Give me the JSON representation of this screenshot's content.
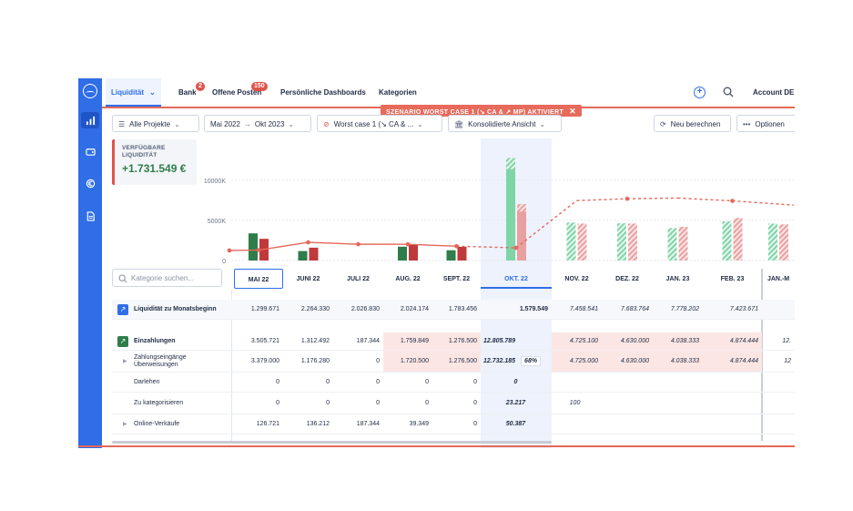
{
  "nav": {
    "tabs": [
      {
        "label": "Liquidität",
        "badge": ""
      },
      {
        "label": "Bank",
        "badge": "2"
      },
      {
        "label": "Offene Posten",
        "badge": "150"
      },
      {
        "label": "Persönliche Dashboards",
        "badge": ""
      },
      {
        "label": "Kategorien",
        "badge": ""
      }
    ],
    "scenario_banner": "SZENARIO WORST CASE 1 (↘ CA & ↗ MP) AKTIVIERT",
    "account": "Account DE"
  },
  "toolbar": {
    "projects": "Alle Projekte",
    "range_from": "Mai 2022",
    "range_to": "Okt 2023",
    "scenario": "Worst case 1 (↘ CA & ...",
    "view": "Konsolidierte Ansicht",
    "recalc": "Neu berechnen",
    "options": "Optionen"
  },
  "kpi": {
    "label": "VERFÜGBARE LIQUIDITÄT",
    "value": "+1.731.549 €"
  },
  "chart_data": {
    "type": "bar",
    "categories": [
      "MAI 22",
      "JUNI 22",
      "JULI 22",
      "AUG. 22",
      "SEPT. 22",
      "OKT. 22",
      "NOV. 22",
      "DEZ. 22",
      "JAN. 23",
      "FEB. 23",
      "JAN.-M"
    ],
    "y_ticks": [
      "10000K",
      "5000K",
      "0"
    ],
    "ylim": [
      0,
      14000000
    ],
    "series": [
      {
        "values": [
          3379000,
          1176280,
          0,
          1720500,
          1276500,
          12732185,
          4725000,
          4630000,
          4038333,
          4874444,
          4600000
        ]
      },
      {
        "values": [
          2700000,
          1600000,
          0,
          2000000,
          1700000,
          7000000,
          4600000,
          4600000,
          4200000,
          5300000,
          4500000
        ]
      },
      {
        "values": [
          1299671,
          2264330,
          2026830,
          2024174,
          1783456,
          1579549,
          7458541,
          7683764,
          7778202,
          7423671,
          6900000
        ]
      }
    ],
    "forecast_from_index": 5
  },
  "table": {
    "search_placeholder": "Kategorie suchen...",
    "rows": [
      {
        "label": "Liquidität zu Monatsbeginn",
        "values": [
          "1.299.671",
          "2.264.330",
          "2.026.830",
          "2.024.174",
          "1.783.456",
          "1.579.549",
          "7.458.541",
          "7.683.764",
          "7.778.202",
          "7.423.671",
          ""
        ]
      },
      {
        "label": "Einzahlungen",
        "values": [
          "3.505.721",
          "1.312.492",
          "187.344",
          "1.759.849",
          "1.276.500",
          "12.805.789",
          "4.725.100",
          "4.630.000",
          "4.038.333",
          "4.874.444",
          "12."
        ]
      },
      {
        "label": "Zahlungseingänge Überweisungen",
        "values": [
          "3.379.000",
          "1.176.280",
          "0",
          "1.720.500",
          "1.276.500",
          "12.732.185",
          "4.725.000",
          "4.630.000",
          "4.038.333",
          "4.874.444",
          "12"
        ],
        "pct": "68%"
      },
      {
        "label": "Darlehen",
        "values": [
          "0",
          "0",
          "0",
          "0",
          "0",
          "0",
          "",
          "",
          "",
          "",
          ""
        ]
      },
      {
        "label": "Zu kategorisieren",
        "values": [
          "0",
          "0",
          "0",
          "0",
          "0",
          "23.217",
          "100",
          "",
          "",
          "",
          ""
        ]
      },
      {
        "label": "Online-Verkäufe",
        "values": [
          "126.721",
          "136.212",
          "187.344",
          "39.349",
          "0",
          "50.387",
          "",
          "",
          "",
          "",
          ""
        ]
      }
    ]
  }
}
